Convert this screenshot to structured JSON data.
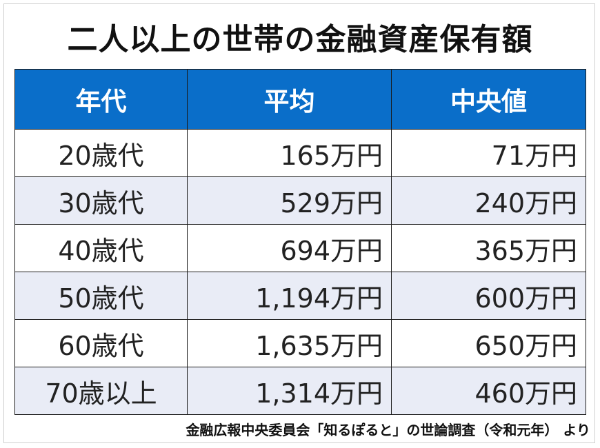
{
  "chart_data": {
    "type": "table",
    "title": "二人以上の世帯の金融資産保有額",
    "columns": [
      "年代",
      "平均",
      "中央値"
    ],
    "rows": [
      {
        "age": "20歳代",
        "average": "165万円",
        "median": "71万円"
      },
      {
        "age": "30歳代",
        "average": "529万円",
        "median": "240万円"
      },
      {
        "age": "40歳代",
        "average": "694万円",
        "median": "365万円"
      },
      {
        "age": "50歳代",
        "average": "1,194万円",
        "median": "600万円"
      },
      {
        "age": "60歳代",
        "average": "1,635万円",
        "median": "650万円"
      },
      {
        "age": "70歳以上",
        "average": "1,314万円",
        "median": "460万円"
      }
    ],
    "source": "金融広報中央委員会「知るぽると」の世論調査（令和元年） より"
  },
  "colors": {
    "header_background": "#0a6ec9",
    "row_white": "#ffffff",
    "row_stripe": "#e9ecf6",
    "border": "#1a1a1a"
  }
}
